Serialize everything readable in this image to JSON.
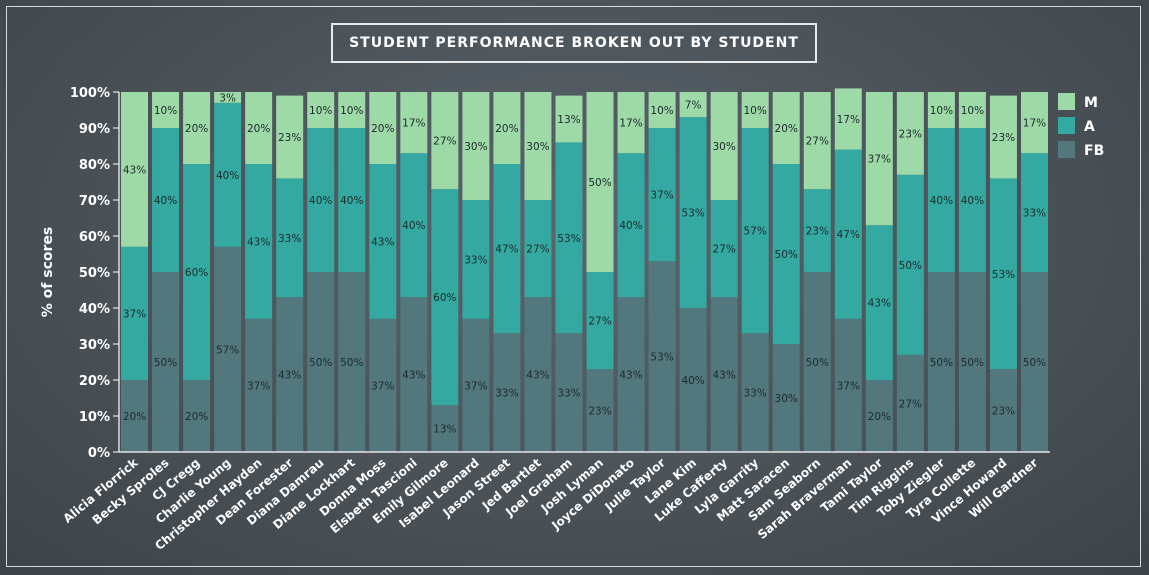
{
  "chart_data": {
    "type": "bar",
    "stacked": true,
    "title": "STUDENT PERFORMANCE BROKEN OUT BY STUDENT",
    "ylabel": "% of scores",
    "xlabel": "",
    "ylim": [
      0,
      100
    ],
    "yticks": [
      "0%",
      "10%",
      "20%",
      "30%",
      "40%",
      "50%",
      "60%",
      "70%",
      "80%",
      "90%",
      "100%"
    ],
    "legend_position": "right",
    "categories": [
      "Alicia Florrick",
      "Becky Sproles",
      "CJ Cregg",
      "Charlie Young",
      "Christopher Hayden",
      "Dean Forester",
      "Diana Damrau",
      "Diane Lockhart",
      "Donna Moss",
      "Elsbeth Tascioni",
      "Emily Gilmore",
      "Isabel Leonard",
      "Jason Street",
      "Jed Bartlet",
      "Joel Graham",
      "Josh Lyman",
      "Joyce DiDonato",
      "Julie Taylor",
      "Lane Kim",
      "Luke Cafferty",
      "Lyla Garrity",
      "Matt Saracen",
      "Sam Seaborn",
      "Sarah Braverman",
      "Tami Taylor",
      "Tim Riggins",
      "Toby Ziegler",
      "Tyra Collette",
      "Vince Howard",
      "Will Gardner"
    ],
    "series": [
      {
        "name": "FB",
        "color": "#52787e",
        "values": [
          20,
          50,
          20,
          57,
          37,
          43,
          50,
          50,
          37,
          43,
          13,
          37,
          33,
          43,
          33,
          23,
          43,
          53,
          40,
          43,
          33,
          30,
          50,
          37,
          20,
          27,
          50,
          50,
          23,
          50
        ]
      },
      {
        "name": "A",
        "color": "#33a9a2",
        "values": [
          37,
          40,
          60,
          40,
          43,
          33,
          40,
          40,
          43,
          40,
          60,
          33,
          47,
          27,
          53,
          27,
          40,
          37,
          53,
          27,
          57,
          50,
          23,
          47,
          43,
          50,
          40,
          40,
          53,
          33
        ]
      },
      {
        "name": "M",
        "color": "#9ed9a8",
        "values": [
          43,
          10,
          20,
          3,
          20,
          23,
          10,
          10,
          20,
          17,
          27,
          30,
          20,
          30,
          13,
          50,
          17,
          10,
          7,
          30,
          10,
          20,
          27,
          17,
          37,
          23,
          10,
          10,
          23,
          17
        ]
      }
    ],
    "label_suffix": "%",
    "colors": {
      "axis": "#ffffff",
      "label_text": "#1d2a2c",
      "title_border": "#e8eaeb"
    }
  }
}
